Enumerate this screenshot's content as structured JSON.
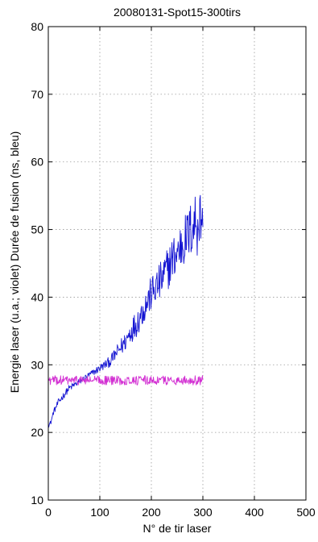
{
  "chart_data": {
    "type": "line",
    "title": "20080131-Spot15-300tirs",
    "xlabel": "N° de tir laser",
    "ylabel": "Energie  laser (u.a.; violet)  Durée de fusion (ns, bleu)",
    "xlim": [
      0,
      500
    ],
    "ylim": [
      10,
      80
    ],
    "xticks": [
      0,
      100,
      200,
      300,
      400,
      500
    ],
    "yticks": [
      10,
      20,
      30,
      40,
      50,
      60,
      70,
      80
    ],
    "grid": true,
    "legend": "none",
    "series": [
      {
        "color": "#1414d2",
        "x": [
          0,
          5,
          10,
          20,
          30,
          40,
          50,
          60,
          70,
          80,
          90,
          100,
          110,
          120,
          130,
          140,
          150,
          160,
          170,
          180,
          190,
          200,
          210,
          220,
          230,
          240,
          250,
          260,
          270,
          280,
          285,
          290,
          295,
          300
        ],
        "y": [
          21,
          21.5,
          23,
          24.5,
          25.5,
          26.5,
          27,
          27.5,
          28,
          28.5,
          29,
          29.5,
          30,
          30.5,
          31.5,
          32.5,
          33.5,
          35,
          36,
          37.5,
          39,
          40.5,
          41.5,
          42.5,
          44,
          45.5,
          46.5,
          48,
          49,
          50.5,
          51,
          52,
          51.5,
          52
        ],
        "noise": [
          0.3,
          0.3,
          0.4,
          0.5,
          0.5,
          0.5,
          0.5,
          0.5,
          0.5,
          0.5,
          0.5,
          0.6,
          0.7,
          0.8,
          1.0,
          1.3,
          1.5,
          1.8,
          2.0,
          2.2,
          2.4,
          2.6,
          2.8,
          3.0,
          3.2,
          3.4,
          3.6,
          3.8,
          4.0,
          4.3,
          5.5,
          6.5,
          5.0,
          2.5
        ]
      },
      {
        "color": "#d22ed2",
        "x": [
          0,
          300
        ],
        "y": [
          27.7,
          27.7
        ],
        "noise": [
          0.7,
          0.7
        ]
      }
    ]
  }
}
